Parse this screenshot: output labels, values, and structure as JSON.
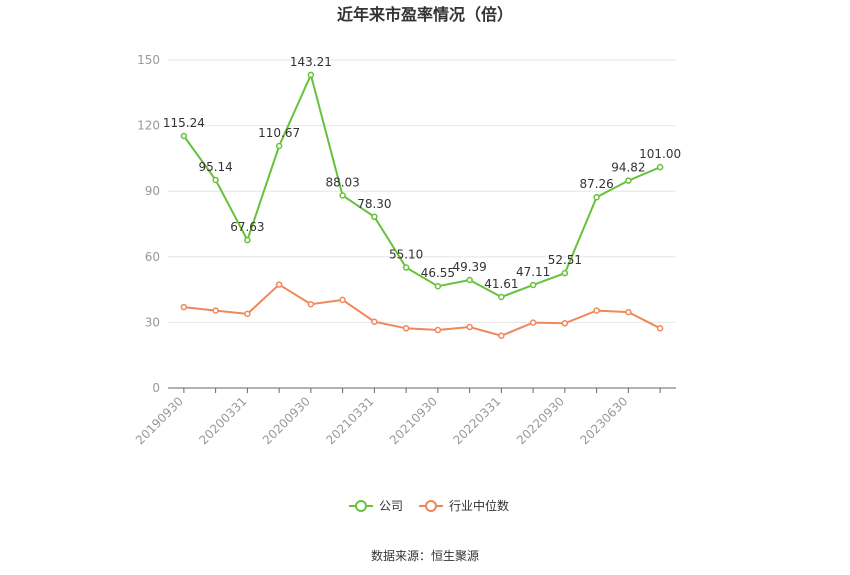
{
  "chart_data": {
    "type": "line",
    "title": "近年来市盈率情况（倍）",
    "categories": [
      "20190930",
      "20191231",
      "20200331",
      "20200630",
      "20200930",
      "20201231",
      "20210331",
      "20210630",
      "20210930",
      "20211231",
      "20220331",
      "20220630",
      "20220930",
      "20221231",
      "20230630",
      "20230930"
    ],
    "x_tick_labels": [
      "20190930",
      "20200331",
      "20200930",
      "20210331",
      "20210930",
      "20220331",
      "20220930",
      "20230630"
    ],
    "ylim": [
      0,
      150
    ],
    "yticks": [
      0,
      30,
      60,
      90,
      120,
      150
    ],
    "grid": true,
    "legend_position": "bottom",
    "series": [
      {
        "name": "公司",
        "color": "#67c23a",
        "values": [
          115.24,
          95.14,
          67.63,
          110.67,
          143.21,
          88.03,
          78.3,
          55.1,
          46.55,
          49.39,
          41.61,
          47.11,
          52.51,
          87.26,
          94.82,
          101.0
        ],
        "labels": [
          "115.24",
          "95.14",
          "67.63",
          "110.67",
          "143.21",
          "88.03",
          "78.30",
          "55.10",
          "46.55",
          "49.39",
          "41.61",
          "47.11",
          "52.51",
          "87.26",
          "94.82",
          "101.00"
        ]
      },
      {
        "name": "行业中位数",
        "color": "#f0875a",
        "values": [
          37.0,
          35.4,
          33.9,
          47.3,
          38.3,
          40.3,
          30.3,
          27.3,
          26.5,
          27.9,
          23.9,
          29.9,
          29.6,
          35.4,
          34.7,
          27.3
        ]
      }
    ],
    "source": "数据来源：恒生聚源"
  }
}
